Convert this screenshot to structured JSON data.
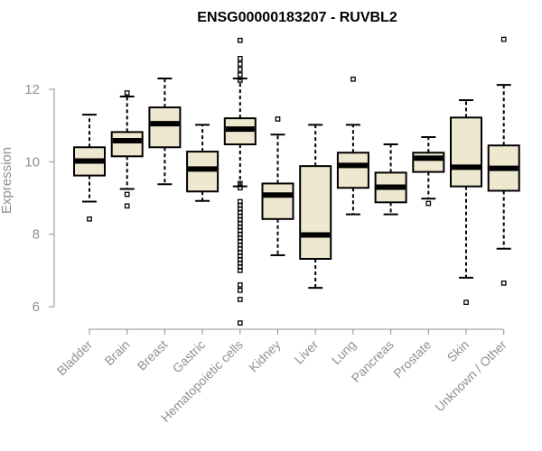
{
  "chart_data": {
    "type": "boxplot",
    "title": "ENSG00000183207 - RUVBL2",
    "xlabel": "",
    "ylabel": "Expression",
    "ylim": [
      5.5,
      13.5
    ],
    "yticks": [
      6,
      8,
      10,
      12
    ],
    "categories": [
      "Bladder",
      "Brain",
      "Breast",
      "Gastric",
      "Hematopoietic cells",
      "Kidney",
      "Liver",
      "Lung",
      "Pancreas",
      "Prostate",
      "Skin",
      "Unknown / Other"
    ],
    "boxes": [
      {
        "category": "Bladder",
        "whisker_low": 8.9,
        "q1": 9.62,
        "median": 10.02,
        "q3": 10.4,
        "whisker_high": 11.3,
        "outliers": [
          8.42
        ]
      },
      {
        "category": "Brain",
        "whisker_low": 9.25,
        "q1": 10.15,
        "median": 10.58,
        "q3": 10.82,
        "whisker_high": 11.8,
        "outliers": [
          11.9,
          9.1,
          8.78
        ]
      },
      {
        "category": "Breast",
        "whisker_low": 9.38,
        "q1": 10.4,
        "median": 11.05,
        "q3": 11.5,
        "whisker_high": 12.3,
        "outliers": []
      },
      {
        "category": "Gastric",
        "whisker_low": 8.92,
        "q1": 9.18,
        "median": 9.8,
        "q3": 10.28,
        "whisker_high": 11.02,
        "outliers": []
      },
      {
        "category": "Hematopoietic cells",
        "whisker_low": 9.32,
        "q1": 10.48,
        "median": 10.9,
        "q3": 11.2,
        "whisker_high": 12.3,
        "outliers": [
          13.35,
          12.85,
          12.7,
          12.55,
          12.4,
          12.25,
          9.4,
          9.28,
          8.9,
          8.8,
          8.7,
          8.6,
          8.5,
          8.4,
          8.3,
          8.2,
          8.1,
          8.0,
          7.9,
          7.8,
          7.7,
          7.6,
          7.5,
          7.4,
          7.3,
          7.2,
          7.1,
          7.0,
          6.6,
          6.45,
          6.2,
          5.55
        ]
      },
      {
        "category": "Kidney",
        "whisker_low": 7.42,
        "q1": 8.42,
        "median": 9.08,
        "q3": 9.4,
        "whisker_high": 10.75,
        "outliers": [
          11.18
        ]
      },
      {
        "category": "Liver",
        "whisker_low": 6.52,
        "q1": 7.32,
        "median": 7.98,
        "q3": 9.88,
        "whisker_high": 11.02,
        "outliers": []
      },
      {
        "category": "Lung",
        "whisker_low": 8.55,
        "q1": 9.28,
        "median": 9.9,
        "q3": 10.25,
        "whisker_high": 11.02,
        "outliers": [
          12.28
        ]
      },
      {
        "category": "Pancreas",
        "whisker_low": 8.55,
        "q1": 8.88,
        "median": 9.3,
        "q3": 9.7,
        "whisker_high": 10.48,
        "outliers": []
      },
      {
        "category": "Prostate",
        "whisker_low": 8.98,
        "q1": 9.72,
        "median": 10.1,
        "q3": 10.25,
        "whisker_high": 10.68,
        "outliers": [
          8.85
        ]
      },
      {
        "category": "Skin",
        "whisker_low": 6.8,
        "q1": 9.32,
        "median": 9.85,
        "q3": 11.22,
        "whisker_high": 11.7,
        "outliers": [
          6.12
        ]
      },
      {
        "category": "Unknown / Other",
        "whisker_low": 7.6,
        "q1": 9.2,
        "median": 9.82,
        "q3": 10.45,
        "whisker_high": 12.12,
        "outliers": [
          13.38,
          6.65
        ]
      }
    ]
  }
}
